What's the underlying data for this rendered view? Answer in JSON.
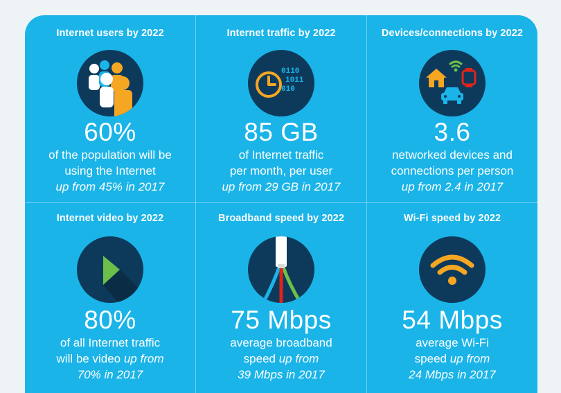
{
  "cards": [
    {
      "title": "Internet users by 2022",
      "icon": "people-icon",
      "value": "60%",
      "line1": "of the population will be",
      "line2": "using the Internet",
      "line3_italic": "up from 45% in 2017"
    },
    {
      "title": "Internet traffic by 2022",
      "icon": "clock-binary-icon",
      "value": "85 GB",
      "line1": "of Internet traffic",
      "line2": "per month, per user",
      "line3_italic": "up from 29 GB in 2017"
    },
    {
      "title": "Devices/connections by 2022",
      "icon": "connected-devices-icon",
      "value": "3.6",
      "line1": "networked devices and",
      "line2": "connections per person",
      "line3_italic": "up from 2.4 in 2017"
    },
    {
      "title": "Internet video by 2022",
      "icon": "play-icon",
      "value": "80%",
      "line1": "of all Internet traffic",
      "line2_plain": "will be video ",
      "line2_italic": "up from",
      "line3_italic": "70% in 2017"
    },
    {
      "title": "Broadband speed by 2022",
      "icon": "cable-icon",
      "value": "75 Mbps",
      "line1": "average broadband",
      "line2_plain": "speed ",
      "line2_italic": "up from",
      "line3_italic": "39 Mbps in 2017"
    },
    {
      "title": "Wi-Fi speed by 2022",
      "icon": "wifi-icon",
      "value": "54 Mbps",
      "line1": "average Wi-Fi",
      "line2_plain": "speed ",
      "line2_italic": "up from",
      "line3_italic": "24 Mbps in 2017"
    }
  ],
  "binary_text": [
    "0110",
    "1011",
    "010"
  ],
  "colors": {
    "background": "#1ab4e8",
    "icon_circle": "#0d3a5b",
    "accent_orange": "#f5a623",
    "accent_green": "#6cc04a",
    "accent_red": "#e2231a"
  }
}
